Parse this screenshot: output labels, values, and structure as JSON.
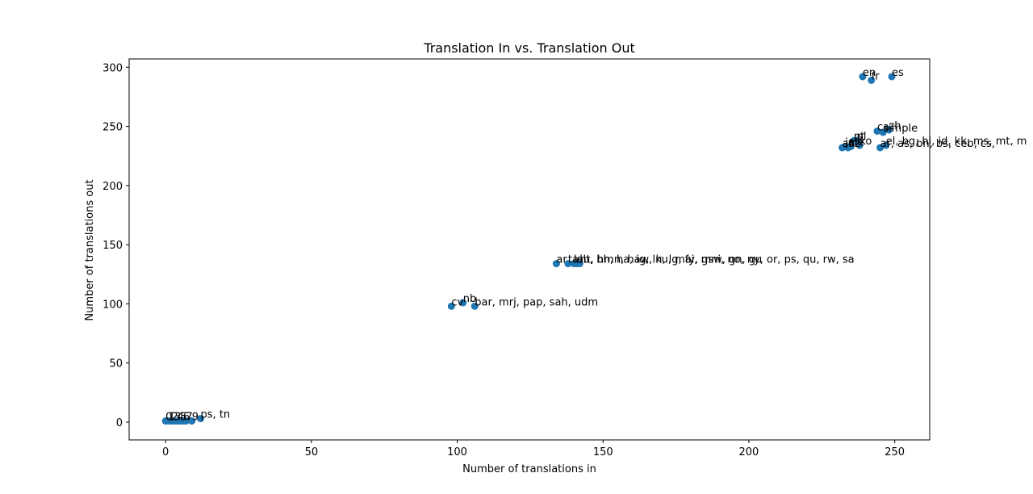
{
  "chart_data": {
    "type": "scatter",
    "title": "Translation In vs. Translation Out",
    "xlabel": "Number of translations in",
    "ylabel": "Number of translations out",
    "xlim": [
      -12.5,
      262
    ],
    "ylim": [
      -15,
      307
    ],
    "xticks": [
      0,
      50,
      100,
      150,
      200,
      250
    ],
    "yticks": [
      0,
      50,
      100,
      150,
      200,
      250,
      300
    ],
    "grid": false,
    "marker_color": "#1f77b4",
    "points": [
      {
        "x": 0,
        "y": 1,
        "label": "0"
      },
      {
        "x": 1,
        "y": 1,
        "label": "1"
      },
      {
        "x": 2,
        "y": 1,
        "label": "2"
      },
      {
        "x": 3,
        "y": 1,
        "label": "3"
      },
      {
        "x": 4,
        "y": 1,
        "label": "4"
      },
      {
        "x": 5,
        "y": 1,
        "label": "5"
      },
      {
        "x": 6,
        "y": 1,
        "label": "6"
      },
      {
        "x": 7,
        "y": 1,
        "label": "7"
      },
      {
        "x": 9,
        "y": 1,
        "label": "9"
      },
      {
        "x": 12,
        "y": 3,
        "label": "ps, tn"
      },
      {
        "x": 98,
        "y": 98,
        "label": "cv"
      },
      {
        "x": 102,
        "y": 101,
        "label": "nb"
      },
      {
        "x": 106,
        "y": 98,
        "label": "bar, mrj, pap, sah, udm"
      },
      {
        "x": 134,
        "y": 134,
        "label": "ar"
      },
      {
        "x": 138,
        "y": 134,
        "label": "ta"
      },
      {
        "x": 140,
        "y": 134,
        "label": "lo"
      },
      {
        "x": 141,
        "y": 134,
        "label": "ab, bh, ha, ig, ln, lg, fy, gsw, gn, gu"
      },
      {
        "x": 142,
        "y": 134,
        "label": "ht, hmn, haw, ku, mai, mni, no, ny, or, ps, qu, rw, sa"
      },
      {
        "x": 232,
        "y": 232,
        "label": "af"
      },
      {
        "x": 233,
        "y": 233,
        "label": "ja"
      },
      {
        "x": 234,
        "y": 232,
        "label": "uz"
      },
      {
        "x": 235,
        "y": 233,
        "label": "de"
      },
      {
        "x": 236,
        "y": 238,
        "label": "pt"
      },
      {
        "x": 237,
        "y": 238,
        "label": "pl"
      },
      {
        "x": 238,
        "y": 234,
        "label": "ko"
      },
      {
        "x": 239,
        "y": 292,
        "label": "en"
      },
      {
        "x": 242,
        "y": 289,
        "label": "fr"
      },
      {
        "x": 244,
        "y": 246,
        "label": "ca"
      },
      {
        "x": 245,
        "y": 232,
        "label": "ar, as, bn, bs, ceb, cs,"
      },
      {
        "x": 246,
        "y": 245,
        "label": "simple"
      },
      {
        "x": 247,
        "y": 234,
        "label": "el, bg, hi, id, kk, ms, mt, m"
      },
      {
        "x": 248,
        "y": 247,
        "label": "zh"
      },
      {
        "x": 249,
        "y": 292,
        "label": "es"
      }
    ]
  }
}
